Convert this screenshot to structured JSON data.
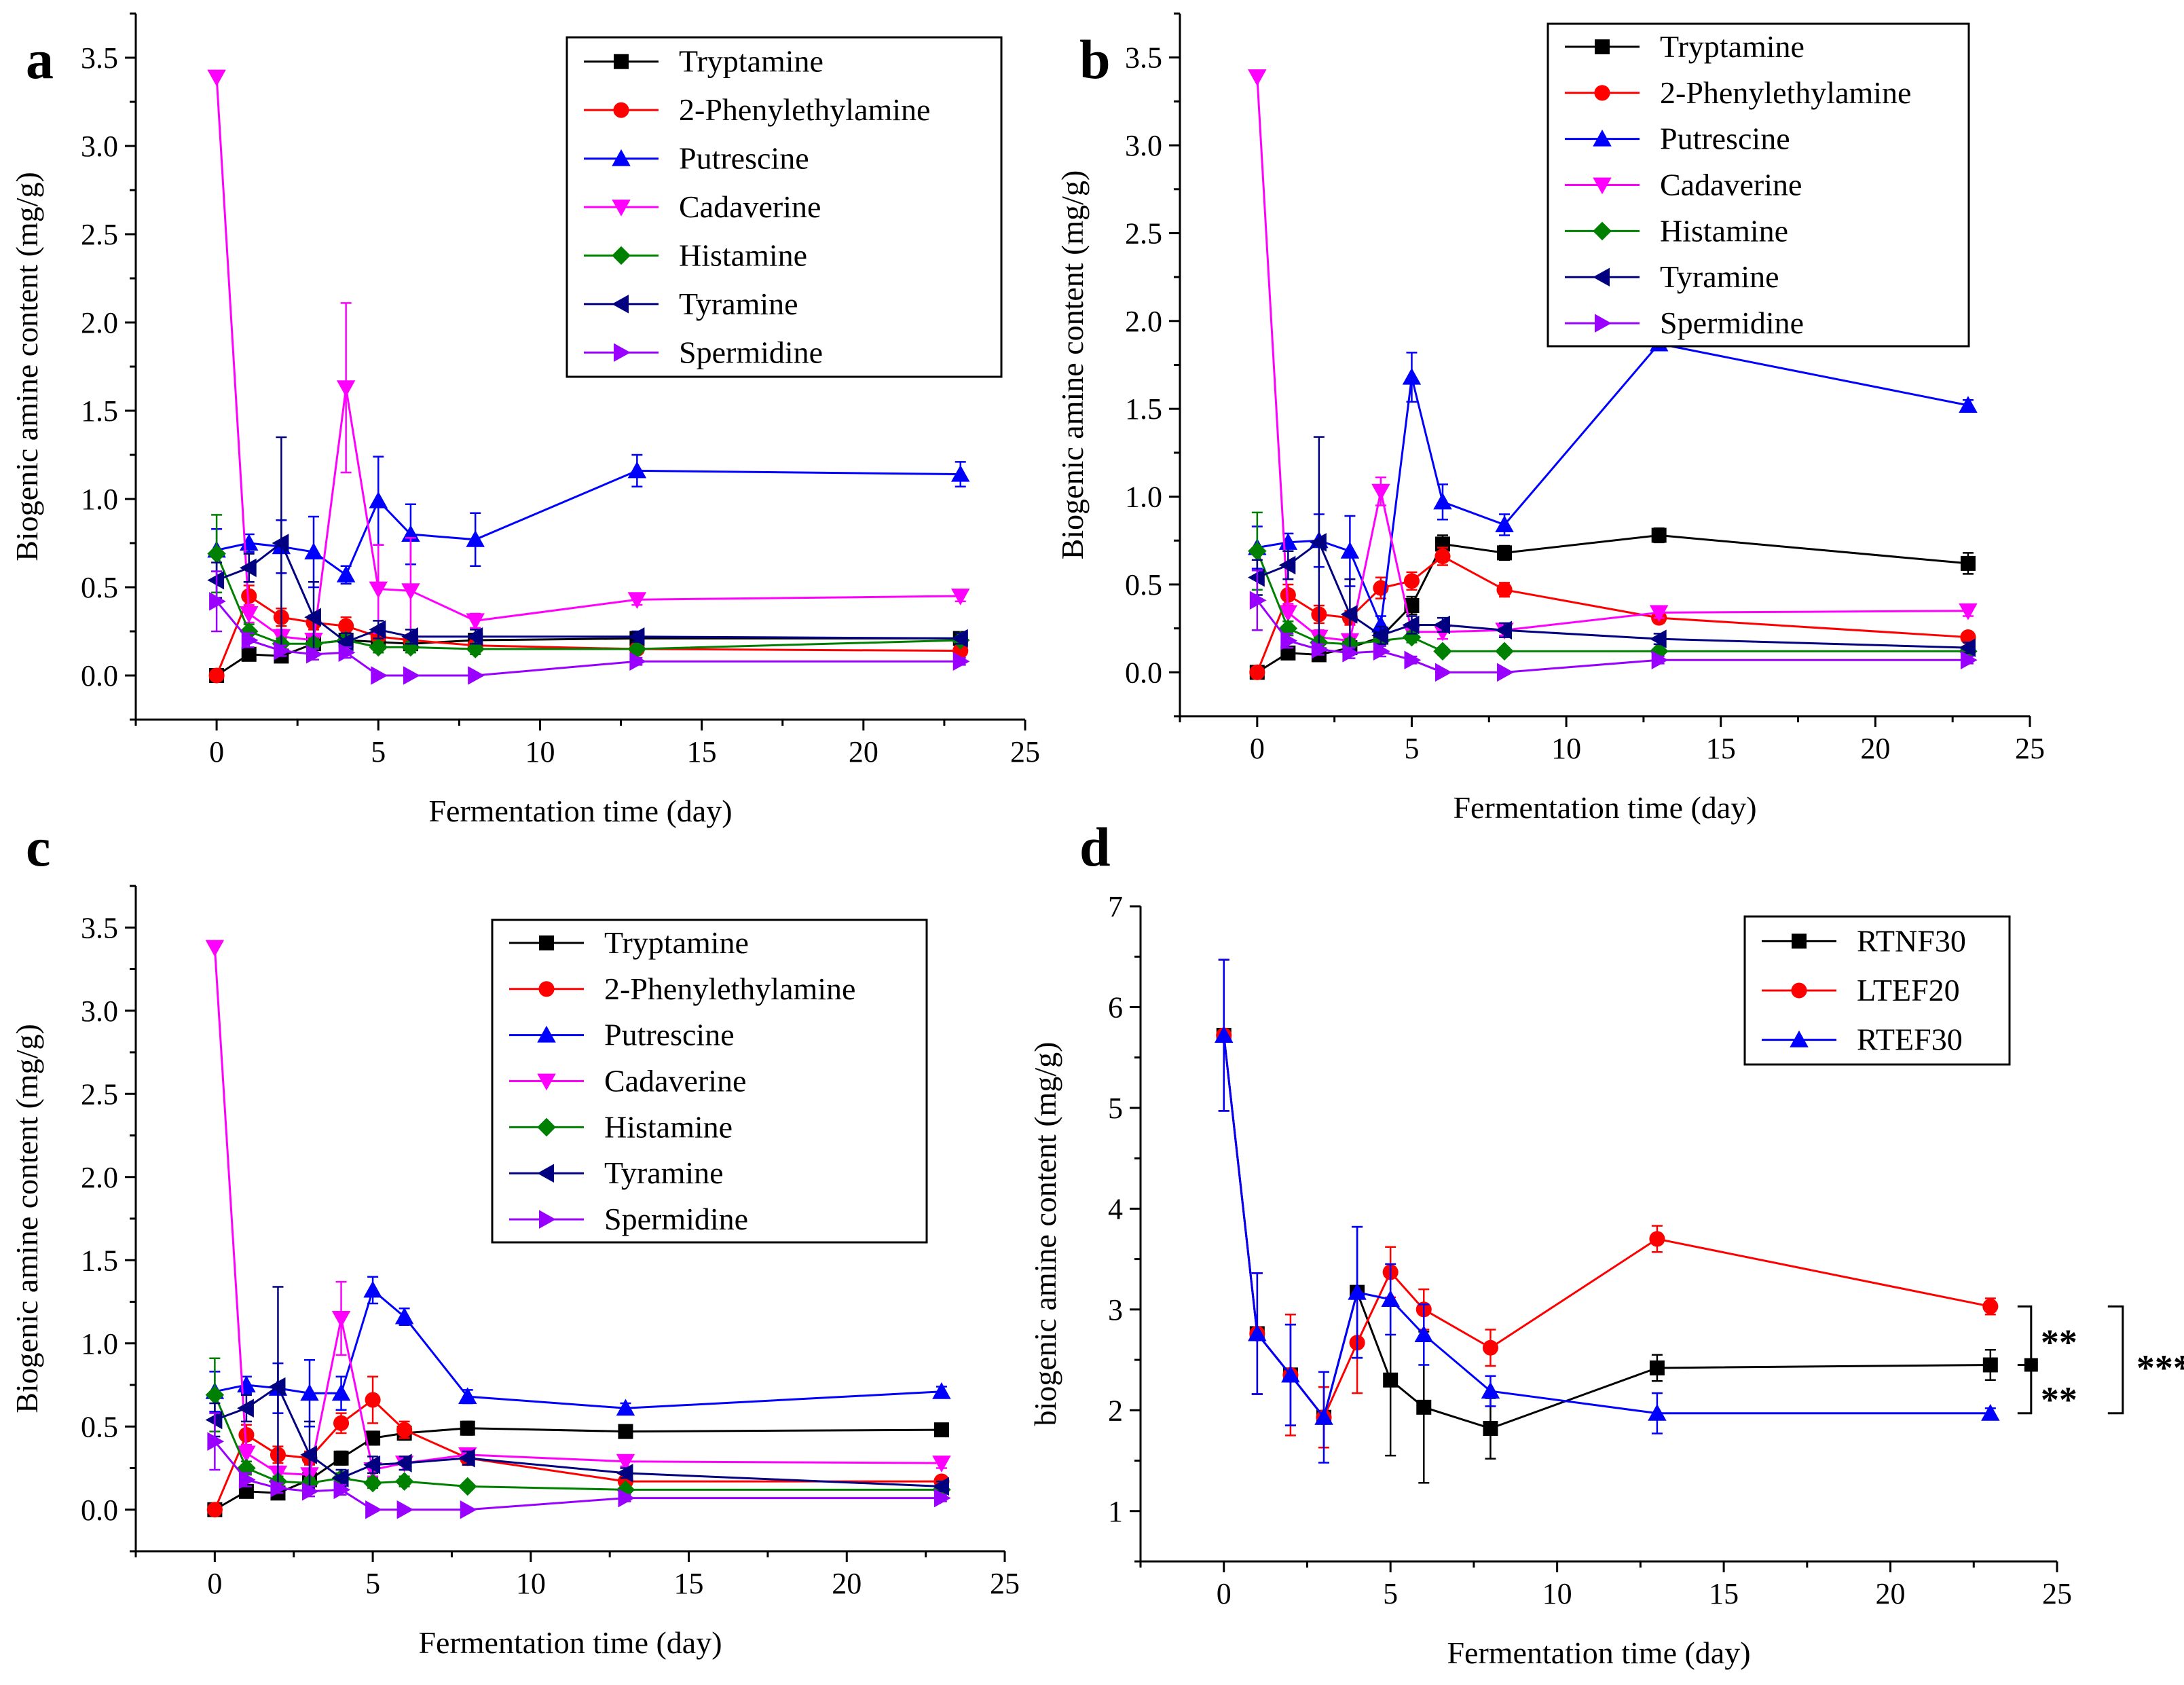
{
  "chart_data": [
    {
      "type": "line",
      "panel_label": "a",
      "xlabel": "Fermentation time (day)",
      "ylabel": "Biogenic amine content (mg/g)",
      "xlim": [
        -2.5,
        25
      ],
      "ylim": [
        -0.25,
        3.75
      ],
      "xticks": [
        0,
        5,
        10,
        15,
        20,
        25
      ],
      "yticks": [
        0.0,
        0.5,
        1.0,
        1.5,
        2.0,
        2.5,
        3.0,
        3.5
      ],
      "ytick_labels": [
        "0.0",
        "0.5",
        "1.0",
        "1.5",
        "2.0",
        "2.5",
        "3.0",
        "3.5"
      ],
      "legend_position": "top-right",
      "x": [
        0,
        1,
        2,
        3,
        4,
        5,
        6,
        8,
        13,
        23
      ],
      "series": [
        {
          "name": "Tryptamine",
          "color": "#000000",
          "marker": "square",
          "values": [
            0.0,
            0.12,
            0.11,
            0.18,
            0.2,
            0.19,
            0.18,
            0.2,
            0.21,
            0.21
          ],
          "errors": [
            0,
            0.02,
            0.02,
            0.03,
            0.03,
            0.03,
            0.03,
            0.03,
            0.02,
            0.02
          ]
        },
        {
          "name": "2-Phenylethylamine",
          "color": "#ff0000",
          "marker": "circle",
          "values": [
            0.0,
            0.45,
            0.33,
            0.3,
            0.28,
            0.22,
            0.2,
            0.17,
            0.15,
            0.14
          ],
          "errors": [
            0,
            0.06,
            0.05,
            0.04,
            0.05,
            0.04,
            0.03,
            0.03,
            0.02,
            0.02
          ]
        },
        {
          "name": "Putrescine",
          "color": "#0000ff",
          "marker": "triangle-up",
          "values": [
            0.71,
            0.75,
            0.73,
            0.7,
            0.57,
            0.99,
            0.8,
            0.77,
            1.16,
            1.14
          ],
          "errors": [
            0.12,
            0.05,
            0.15,
            0.2,
            0.05,
            0.25,
            0.17,
            0.15,
            0.09,
            0.07
          ]
        },
        {
          "name": "Cadaverine",
          "color": "#ff00ff",
          "marker": "triangle-down",
          "values": [
            3.39,
            0.35,
            0.22,
            0.2,
            1.63,
            0.49,
            0.48,
            0.31,
            0.43,
            0.45
          ],
          "errors": [
            0,
            0.05,
            0.04,
            0.03,
            0.48,
            0.25,
            0.3,
            0.04,
            0.03,
            0.03
          ]
        },
        {
          "name": "Histamine",
          "color": "#008000",
          "marker": "diamond",
          "values": [
            0.69,
            0.25,
            0.18,
            0.18,
            0.2,
            0.16,
            0.16,
            0.15,
            0.15,
            0.2
          ],
          "errors": [
            0.22,
            0.04,
            0.03,
            0.03,
            0.03,
            0.03,
            0.03,
            0.03,
            0.02,
            0.02
          ]
        },
        {
          "name": "Tyramine",
          "color": "#000080",
          "marker": "triangle-left",
          "values": [
            0.54,
            0.61,
            0.75,
            0.33,
            0.19,
            0.26,
            0.22,
            0.22,
            0.22,
            0.21
          ],
          "errors": [
            0.1,
            0.08,
            0.6,
            0.2,
            0.05,
            0.05,
            0.04,
            0.04,
            0.03,
            0.03
          ]
        },
        {
          "name": "Spermidine",
          "color": "#9900ff",
          "marker": "triangle-right",
          "values": [
            0.42,
            0.2,
            0.14,
            0.12,
            0.13,
            0.0,
            0.0,
            0.0,
            0.08,
            0.08
          ],
          "errors": [
            0.17,
            0.04,
            0.03,
            0.03,
            0.03,
            0,
            0,
            0,
            0.02,
            0.02
          ]
        }
      ]
    },
    {
      "type": "line",
      "panel_label": "b",
      "xlabel": "Fermentation time (day)",
      "ylabel": "Biogenic amine content (mg/g)",
      "xlim": [
        -2.5,
        25
      ],
      "ylim": [
        -0.25,
        3.75
      ],
      "xticks": [
        0,
        5,
        10,
        15,
        20,
        25
      ],
      "yticks": [
        0.0,
        0.5,
        1.0,
        1.5,
        2.0,
        2.5,
        3.0,
        3.5
      ],
      "ytick_labels": [
        "0.0",
        "0.5",
        "1.0",
        "1.5",
        "2.0",
        "2.5",
        "3.0",
        "3.5"
      ],
      "legend_position": "top-right",
      "x": [
        0,
        1,
        2,
        3,
        4,
        5,
        6,
        8,
        13,
        23
      ],
      "series": [
        {
          "name": "Tryptamine",
          "color": "#000000",
          "marker": "square",
          "values": [
            0.0,
            0.11,
            0.1,
            0.14,
            0.2,
            0.38,
            0.73,
            0.68,
            0.78,
            0.62
          ],
          "errors": [
            0,
            0.02,
            0.02,
            0.03,
            0.04,
            0.05,
            0.05,
            0.04,
            0.04,
            0.06
          ]
        },
        {
          "name": "2-Phenylethylamine",
          "color": "#ff0000",
          "marker": "circle",
          "values": [
            0.0,
            0.44,
            0.33,
            0.31,
            0.48,
            0.52,
            0.66,
            0.47,
            0.31,
            0.2
          ],
          "errors": [
            0,
            0.06,
            0.05,
            0.04,
            0.06,
            0.05,
            0.05,
            0.04,
            0.03,
            0.02
          ]
        },
        {
          "name": "Putrescine",
          "color": "#0000ff",
          "marker": "triangle-up",
          "values": [
            0.71,
            0.74,
            0.75,
            0.69,
            0.27,
            1.68,
            0.97,
            0.84,
            1.87,
            1.52
          ],
          "errors": [
            0.12,
            0.05,
            0.15,
            0.2,
            0.05,
            0.14,
            0.1,
            0.06,
            0.03,
            0.03
          ]
        },
        {
          "name": "Cadaverine",
          "color": "#ff00ff",
          "marker": "triangle-down",
          "values": [
            3.39,
            0.34,
            0.2,
            0.18,
            1.03,
            0.23,
            0.23,
            0.24,
            0.34,
            0.35
          ],
          "errors": [
            0,
            0.05,
            0.04,
            0.03,
            0.08,
            0.04,
            0.04,
            0.03,
            0.03,
            0.03
          ]
        },
        {
          "name": "Histamine",
          "color": "#008000",
          "marker": "diamond",
          "values": [
            0.69,
            0.25,
            0.17,
            0.16,
            0.18,
            0.2,
            0.12,
            0.12,
            0.12,
            0.12
          ],
          "errors": [
            0.22,
            0.04,
            0.03,
            0.03,
            0.03,
            0.03,
            0.02,
            0.02,
            0.02,
            0.02
          ]
        },
        {
          "name": "Tyramine",
          "color": "#000080",
          "marker": "triangle-left",
          "values": [
            0.54,
            0.61,
            0.74,
            0.33,
            0.21,
            0.27,
            0.27,
            0.24,
            0.19,
            0.14
          ],
          "errors": [
            0.1,
            0.08,
            0.6,
            0.2,
            0.05,
            0.05,
            0.04,
            0.04,
            0.03,
            0.03
          ]
        },
        {
          "name": "Spermidine",
          "color": "#9900ff",
          "marker": "triangle-right",
          "values": [
            0.41,
            0.18,
            0.13,
            0.11,
            0.12,
            0.07,
            0.0,
            0.0,
            0.07,
            0.07
          ],
          "errors": [
            0.17,
            0.04,
            0.03,
            0.03,
            0.03,
            0.02,
            0,
            0,
            0.02,
            0.02
          ]
        }
      ]
    },
    {
      "type": "line",
      "panel_label": "c",
      "xlabel": "Fermentation time (day)",
      "ylabel": "Biogenic amine content (mg/g)",
      "xlim": [
        -2.5,
        25
      ],
      "ylim": [
        -0.25,
        3.75
      ],
      "xticks": [
        0,
        5,
        10,
        15,
        20,
        25
      ],
      "yticks": [
        0.0,
        0.5,
        1.0,
        1.5,
        2.0,
        2.5,
        3.0,
        3.5
      ],
      "ytick_labels": [
        "0.0",
        "0.5",
        "1.0",
        "1.5",
        "2.0",
        "2.5",
        "3.0",
        "3.5"
      ],
      "legend_position": "top-right",
      "x": [
        0,
        1,
        2,
        3,
        4,
        5,
        6,
        8,
        13,
        23
      ],
      "series": [
        {
          "name": "Tryptamine",
          "color": "#000000",
          "marker": "square",
          "values": [
            0.0,
            0.11,
            0.1,
            0.18,
            0.31,
            0.43,
            0.46,
            0.49,
            0.47,
            0.48
          ],
          "errors": [
            0,
            0.02,
            0.02,
            0.03,
            0.04,
            0.04,
            0.04,
            0.04,
            0.03,
            0.03
          ]
        },
        {
          "name": "2-Phenylethylamine",
          "color": "#ff0000",
          "marker": "circle",
          "values": [
            0.0,
            0.45,
            0.33,
            0.31,
            0.52,
            0.66,
            0.48,
            0.31,
            0.17,
            0.17
          ],
          "errors": [
            0,
            0.06,
            0.05,
            0.04,
            0.06,
            0.14,
            0.05,
            0.04,
            0.03,
            0.02
          ]
        },
        {
          "name": "Putrescine",
          "color": "#0000ff",
          "marker": "triangle-up",
          "values": [
            0.71,
            0.75,
            0.73,
            0.7,
            0.7,
            1.32,
            1.16,
            0.68,
            0.61,
            0.71
          ],
          "errors": [
            0.12,
            0.05,
            0.15,
            0.2,
            0.1,
            0.08,
            0.05,
            0.04,
            0.03,
            0.03
          ]
        },
        {
          "name": "Cadaverine",
          "color": "#ff00ff",
          "marker": "triangle-down",
          "values": [
            3.38,
            0.34,
            0.22,
            0.21,
            1.15,
            0.24,
            0.28,
            0.33,
            0.29,
            0.28
          ],
          "errors": [
            0,
            0.05,
            0.04,
            0.03,
            0.22,
            0.04,
            0.04,
            0.03,
            0.03,
            0.03
          ]
        },
        {
          "name": "Histamine",
          "color": "#008000",
          "marker": "diamond",
          "values": [
            0.69,
            0.25,
            0.17,
            0.16,
            0.19,
            0.16,
            0.17,
            0.14,
            0.12,
            0.12
          ],
          "errors": [
            0.22,
            0.04,
            0.03,
            0.03,
            0.03,
            0.03,
            0.03,
            0.02,
            0.02,
            0.02
          ]
        },
        {
          "name": "Tyramine",
          "color": "#000080",
          "marker": "triangle-left",
          "values": [
            0.54,
            0.61,
            0.74,
            0.33,
            0.19,
            0.27,
            0.28,
            0.31,
            0.22,
            0.14
          ],
          "errors": [
            0.1,
            0.08,
            0.6,
            0.2,
            0.05,
            0.05,
            0.04,
            0.04,
            0.03,
            0.03
          ]
        },
        {
          "name": "Spermidine",
          "color": "#9900ff",
          "marker": "triangle-right",
          "values": [
            0.41,
            0.18,
            0.13,
            0.11,
            0.12,
            0.0,
            0.0,
            0.0,
            0.07,
            0.07
          ],
          "errors": [
            0.17,
            0.04,
            0.03,
            0.03,
            0.03,
            0,
            0,
            0,
            0.02,
            0.02
          ]
        }
      ]
    },
    {
      "type": "line",
      "panel_label": "d",
      "xlabel": "Fermentation time (day)",
      "ylabel": "biogenic amine content (mg/g)",
      "xlim": [
        -2.5,
        25
      ],
      "ylim": [
        0.5,
        7
      ],
      "xticks": [
        0,
        5,
        10,
        15,
        20,
        25
      ],
      "yticks": [
        1,
        2,
        3,
        4,
        5,
        6,
        7
      ],
      "ytick_labels": [
        "1",
        "2",
        "3",
        "4",
        "5",
        "6",
        "7"
      ],
      "legend_position": "top-right",
      "x": [
        0,
        1,
        2,
        3,
        4,
        5,
        6,
        8,
        13,
        23
      ],
      "series": [
        {
          "name": "RTNF30",
          "color": "#000000",
          "marker": "square",
          "values": [
            5.72,
            2.76,
            2.35,
            1.93,
            3.17,
            2.3,
            2.03,
            1.82,
            2.42,
            2.45
          ],
          "errors": [
            0.75,
            0.6,
            0.5,
            0.3,
            0.65,
            0.75,
            0.75,
            0.3,
            0.13,
            0.15
          ]
        },
        {
          "name": "LTEF20",
          "color": "#ff0000",
          "marker": "circle",
          "values": [
            5.72,
            2.76,
            2.35,
            1.93,
            2.67,
            3.37,
            3.0,
            2.62,
            3.7,
            3.03
          ],
          "errors": [
            0.75,
            0.6,
            0.6,
            0.3,
            0.5,
            0.25,
            0.2,
            0.18,
            0.13,
            0.08
          ]
        },
        {
          "name": "RTEF30",
          "color": "#0000ff",
          "marker": "triangle-up",
          "values": [
            5.72,
            2.76,
            2.35,
            1.93,
            3.17,
            3.1,
            2.75,
            2.19,
            1.97,
            1.97
          ],
          "errors": [
            0.75,
            0.6,
            0.5,
            0.45,
            0.65,
            0.35,
            0.3,
            0.15,
            0.2,
            0.05
          ]
        }
      ],
      "annotations": [
        {
          "text": "**",
          "between": [
            "LTEF20",
            "RTNF30"
          ]
        },
        {
          "text": "**",
          "between": [
            "RTNF30",
            "RTEF30"
          ]
        },
        {
          "text": "***",
          "between": [
            "LTEF20",
            "RTEF30"
          ]
        }
      ]
    }
  ]
}
